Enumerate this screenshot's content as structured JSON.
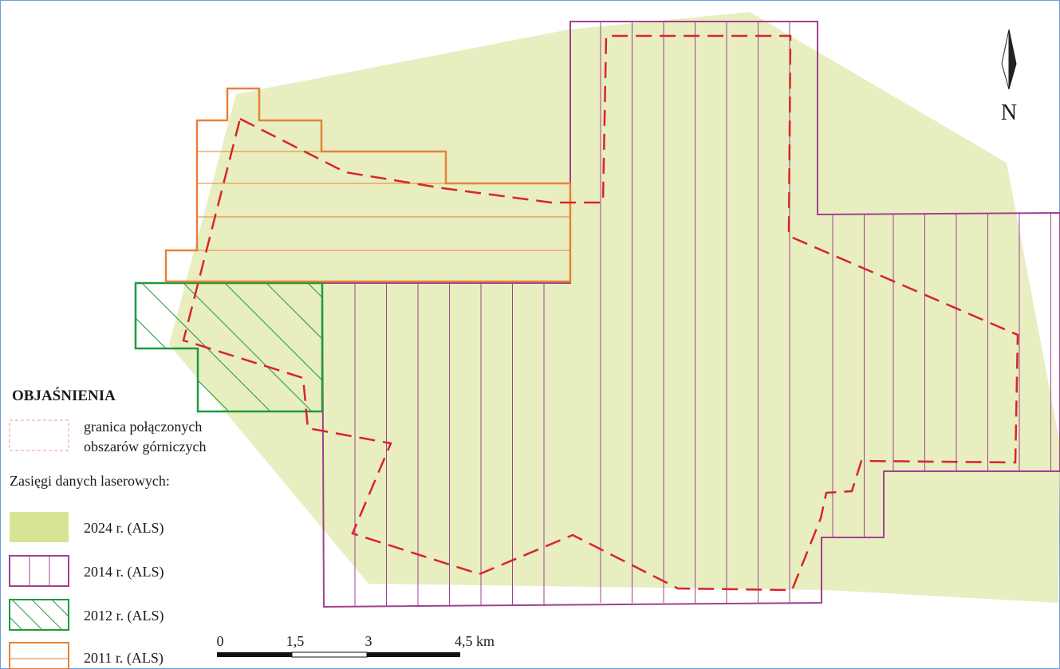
{
  "legend": {
    "title": "OBJAŚNIENIA",
    "boundary_label_line1": "granica połączonych",
    "boundary_label_line2": "obszarów górniczych",
    "ranges_heading": "Zasięgi danych laserowych:",
    "items": [
      {
        "label": "2024 r. (ALS)",
        "fill": "#e8eec0",
        "stroke": "#d6e08f"
      },
      {
        "label": "2014 r. (ALS)",
        "stroke": "#a0418f"
      },
      {
        "label": "2012 r. (ALS)",
        "stroke": "#1f9a3e"
      },
      {
        "label": "2011 r. (ALS)",
        "stroke": "#e5823a"
      }
    ],
    "boundary_color": "#d9242a"
  },
  "scale_bar": {
    "ticks": [
      "0",
      "1,5",
      "3",
      "4,5 km"
    ]
  },
  "north_arrow": {
    "label": "N"
  }
}
